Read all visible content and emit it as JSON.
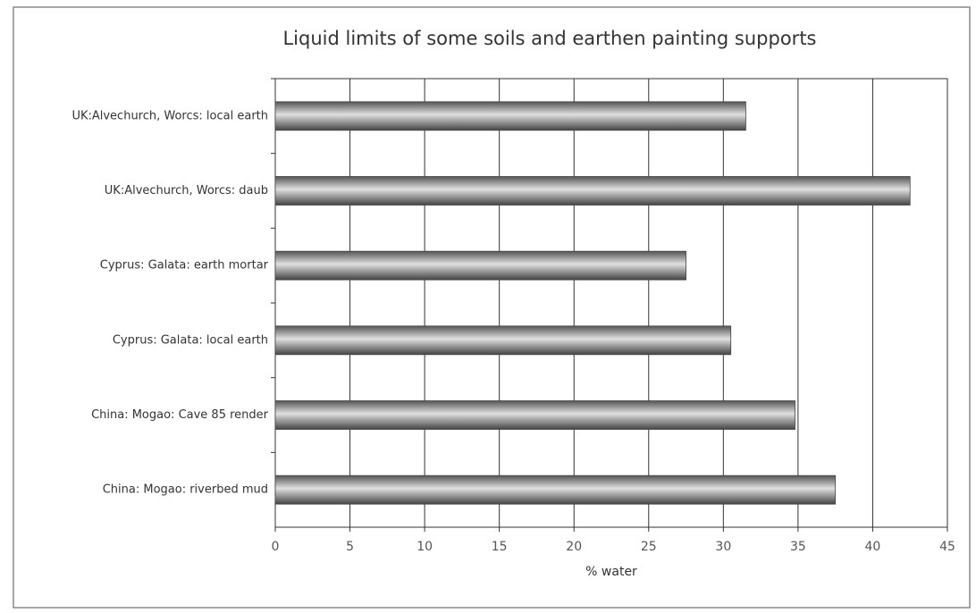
{
  "chart_data": {
    "type": "bar",
    "orientation": "horizontal",
    "title": "Liquid limits of some soils and earthen painting supports",
    "x_label": "% water",
    "categories": [
      "UK:Alvechurch, Worcs: local earth",
      "UK:Alvechurch, Worcs: daub",
      "Cyprus: Galata: earth mortar",
      "Cyprus: Galata: local earth",
      "China: Mogao: Cave 85 render",
      "China: Mogao: riverbed mud"
    ],
    "values": [
      31.5,
      42.5,
      27.5,
      30.5,
      34.8,
      37.5
    ],
    "color": "#9a9a9a",
    "xlim": [
      0,
      45
    ],
    "xticks": [
      0,
      5,
      10,
      15,
      20,
      25,
      30,
      35,
      40,
      45
    ],
    "grid": true
  }
}
